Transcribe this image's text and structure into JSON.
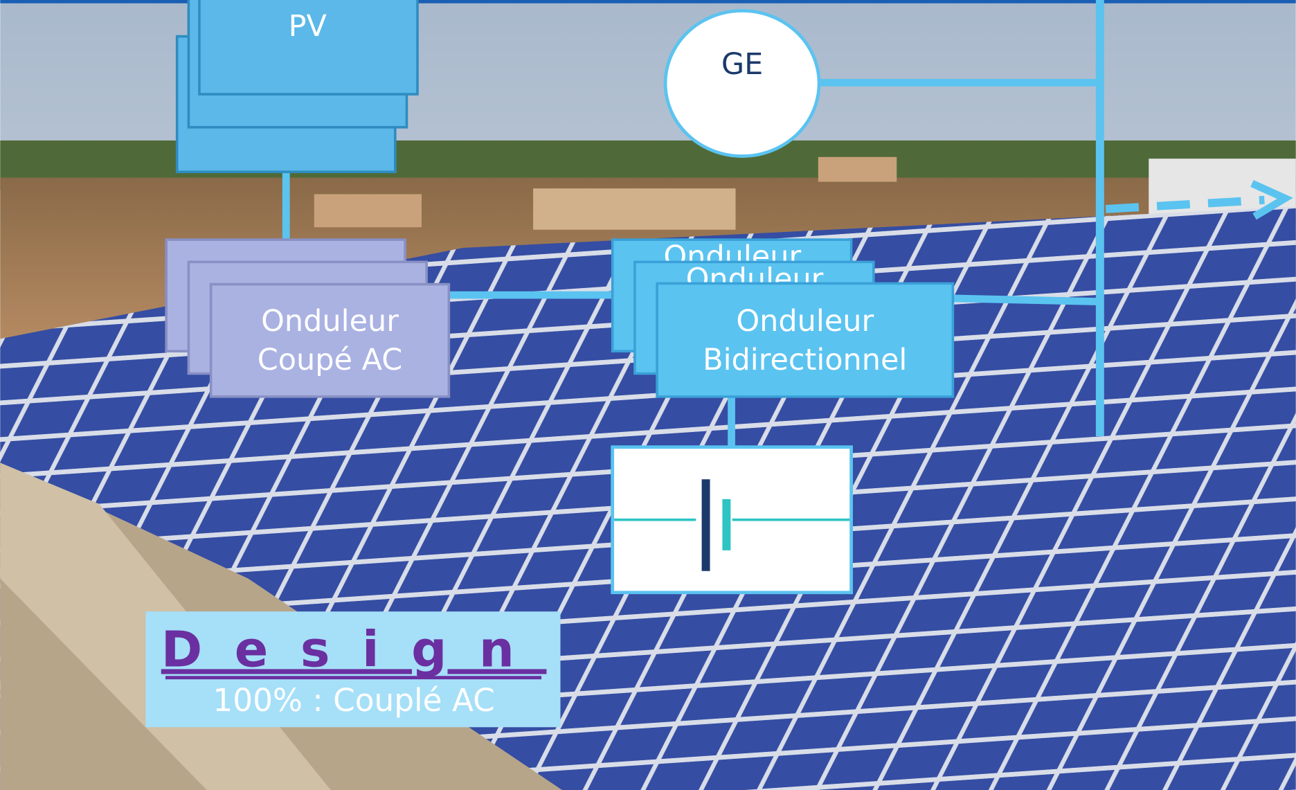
{
  "pv": {
    "label": "PV"
  },
  "generator": {
    "label": "GE"
  },
  "inverter_ac": {
    "lines": [
      "Onduleur",
      "Coupé AC"
    ]
  },
  "inverter_bidirectional": {
    "back_labels": [
      "Onduleur",
      "Onduleur"
    ],
    "lines": [
      "Onduleur",
      "Bidirectionnel"
    ]
  },
  "design": {
    "title": "Design",
    "subtitle": "100% : Couplé AC"
  }
}
